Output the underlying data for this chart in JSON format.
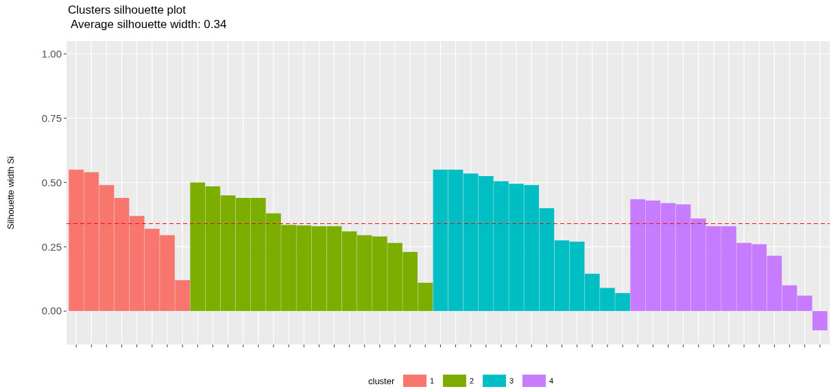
{
  "chart_data": {
    "type": "bar",
    "title": "Clusters silhouette plot",
    "subtitle": "Average silhouette width: 0.34",
    "ylabel": "Silhouette width Si",
    "legend_title": "cluster",
    "categories": [
      null,
      null,
      null,
      null,
      null,
      null,
      null,
      null,
      null,
      null,
      null,
      null,
      null,
      null,
      null,
      null,
      null,
      null,
      null,
      null,
      null,
      null,
      null,
      null,
      null,
      null,
      null,
      null,
      null,
      null,
      null,
      null,
      null,
      null,
      null,
      null,
      null,
      null,
      null,
      null,
      null,
      null,
      null,
      null,
      null,
      null,
      null,
      null,
      null,
      null
    ],
    "series": [
      {
        "name": "1",
        "color": "#f8766d",
        "values": [
          0.55,
          0.54,
          0.49,
          0.44,
          0.37,
          0.32,
          0.295,
          0.12,
          null,
          null,
          null,
          null,
          null,
          null,
          null,
          null,
          null,
          null,
          null,
          null,
          null,
          null,
          null,
          null,
          null,
          null,
          null,
          null,
          null,
          null,
          null,
          null,
          null,
          null,
          null,
          null,
          null,
          null,
          null,
          null,
          null,
          null,
          null,
          null,
          null,
          null,
          null,
          null,
          null,
          null
        ]
      },
      {
        "name": "2",
        "color": "#7cae00",
        "values": [
          null,
          null,
          null,
          null,
          null,
          null,
          null,
          null,
          0.5,
          0.485,
          0.45,
          0.44,
          0.44,
          0.38,
          0.335,
          0.333,
          0.33,
          0.33,
          0.31,
          0.295,
          0.29,
          0.265,
          0.23,
          0.11,
          null,
          null,
          null,
          null,
          null,
          null,
          null,
          null,
          null,
          null,
          null,
          null,
          null,
          null,
          null,
          null,
          null,
          null,
          null,
          null,
          null,
          null,
          null,
          null,
          null,
          null
        ]
      },
      {
        "name": "3",
        "color": "#00bfc4",
        "values": [
          null,
          null,
          null,
          null,
          null,
          null,
          null,
          null,
          null,
          null,
          null,
          null,
          null,
          null,
          null,
          null,
          null,
          null,
          null,
          null,
          null,
          null,
          null,
          null,
          0.55,
          0.55,
          0.535,
          0.525,
          0.505,
          0.495,
          0.49,
          0.4,
          0.275,
          0.27,
          0.145,
          0.09,
          0.07,
          null,
          null,
          null,
          null,
          null,
          null,
          null,
          null,
          null,
          null,
          null,
          null,
          null
        ]
      },
      {
        "name": "4",
        "color": "#c77cff",
        "values": [
          null,
          null,
          null,
          null,
          null,
          null,
          null,
          null,
          null,
          null,
          null,
          null,
          null,
          null,
          null,
          null,
          null,
          null,
          null,
          null,
          null,
          null,
          null,
          null,
          null,
          null,
          null,
          null,
          null,
          null,
          null,
          null,
          null,
          null,
          null,
          null,
          null,
          0.435,
          0.43,
          0.42,
          0.415,
          0.36,
          0.33,
          0.33,
          0.265,
          0.26,
          0.215,
          0.1,
          0.06,
          -0.075
        ]
      }
    ],
    "ylim": [
      -0.13,
      1.05
    ],
    "yticks": [
      {
        "value": 0,
        "label": "0.00"
      },
      {
        "value": 0.25,
        "label": "0.25"
      },
      {
        "value": 0.5,
        "label": "0.50"
      },
      {
        "value": 0.75,
        "label": "0.75"
      },
      {
        "value": 1,
        "label": "1.00"
      }
    ],
    "grid": true,
    "legend": "bottom",
    "ref_lines": [
      {
        "axis": "y",
        "value": 0.34,
        "color": "#ff0000",
        "line_style": "dashed"
      }
    ]
  }
}
